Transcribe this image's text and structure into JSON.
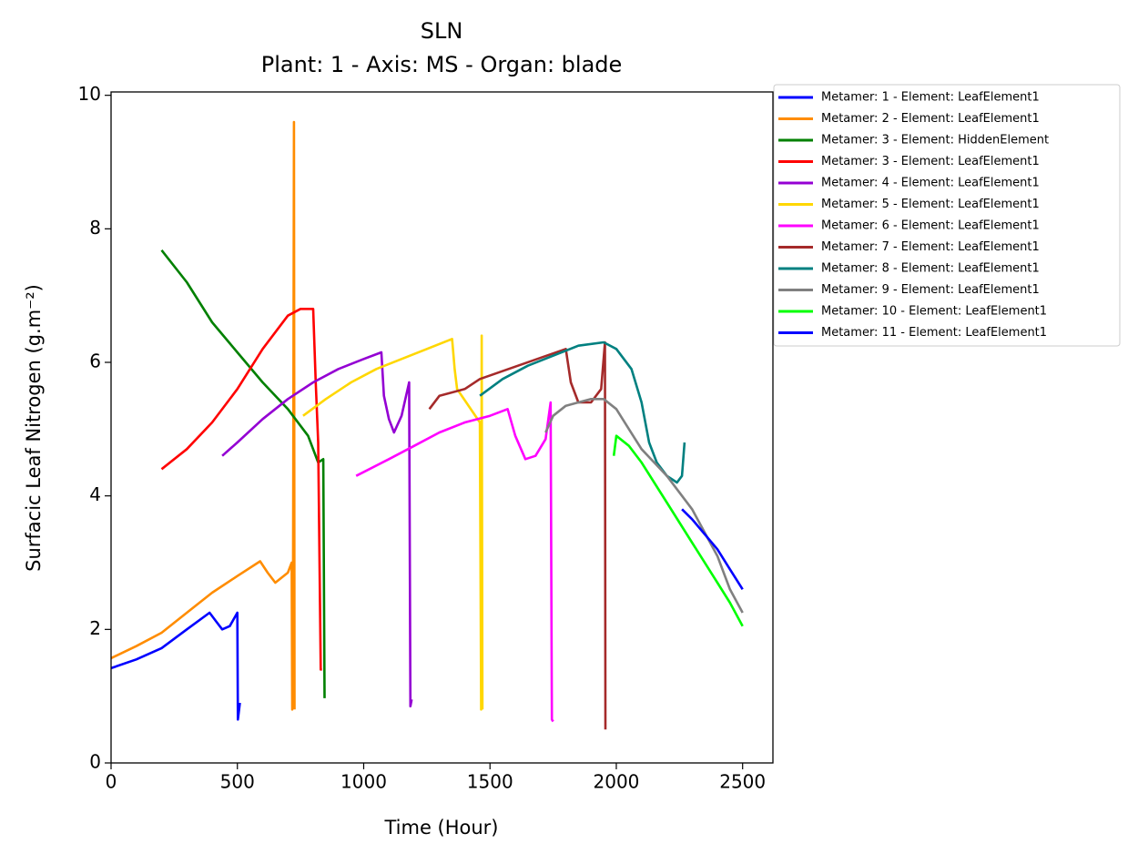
{
  "chart_data": {
    "type": "line",
    "title": "SLN",
    "subtitle": "Plant: 1 - Axis: MS - Organ: blade",
    "xlabel": "Time (Hour)",
    "ylabel": "Surfacic Leaf Nitrogen (g.m⁻²)",
    "xlim": [
      0,
      2620
    ],
    "ylim": [
      0,
      10.05
    ],
    "xticks": [
      0,
      500,
      1000,
      1500,
      2000,
      2500
    ],
    "yticks": [
      0,
      2,
      4,
      6,
      8,
      10
    ],
    "grid": false,
    "legend": "outside upper right",
    "series": [
      {
        "name": "Metamer: 1 - Element: LeafElement1",
        "color": "#0000ff",
        "x": [
          0,
          100,
          200,
          300,
          390,
          420,
          440,
          470,
          500,
          502,
          510
        ],
        "values": [
          1.42,
          1.55,
          1.72,
          2.0,
          2.25,
          2.1,
          2.0,
          2.05,
          2.25,
          0.65,
          0.9
        ]
      },
      {
        "name": "Metamer: 2 - Element: LeafElement1",
        "color": "#ff8c00",
        "x": [
          0,
          100,
          200,
          300,
          400,
          500,
          590,
          620,
          650,
          700,
          715,
          717,
          720,
          724,
          726
        ],
        "values": [
          1.57,
          1.75,
          1.95,
          2.25,
          2.55,
          2.8,
          3.02,
          2.85,
          2.7,
          2.85,
          3.0,
          0.8,
          2.0,
          9.6,
          0.8
        ]
      },
      {
        "name": "Metamer: 3 - Element: HiddenElement",
        "color": "#008000",
        "x": [
          200,
          300,
          400,
          500,
          600,
          700,
          780,
          820,
          840,
          845
        ],
        "values": [
          7.68,
          7.2,
          6.6,
          6.15,
          5.7,
          5.3,
          4.9,
          4.5,
          4.55,
          0.97
        ]
      },
      {
        "name": "Metamer: 3 - Element: LeafElement1",
        "color": "#ff0000",
        "x": [
          200,
          300,
          400,
          500,
          600,
          700,
          750,
          800,
          810,
          820,
          830,
          835
        ],
        "values": [
          4.4,
          4.7,
          5.1,
          5.6,
          6.2,
          6.7,
          6.8,
          6.8,
          5.7,
          4.8,
          1.4,
          1.4
        ]
      },
      {
        "name": "Metamer: 4 - Element: LeafElement1",
        "color": "#9400d3",
        "x": [
          440,
          500,
          600,
          700,
          800,
          900,
          1000,
          1070,
          1080,
          1100,
          1120,
          1150,
          1180,
          1185,
          1190
        ],
        "values": [
          4.6,
          4.8,
          5.15,
          5.45,
          5.7,
          5.9,
          6.05,
          6.15,
          5.5,
          5.15,
          4.95,
          5.2,
          5.7,
          0.85,
          0.95
        ]
      },
      {
        "name": "Metamer: 5 - Element: LeafElement1",
        "color": "#ffd700",
        "x": [
          760,
          850,
          950,
          1050,
          1150,
          1250,
          1350,
          1360,
          1370,
          1460,
          1465,
          1467,
          1470
        ],
        "values": [
          5.2,
          5.45,
          5.7,
          5.9,
          6.05,
          6.2,
          6.35,
          5.9,
          5.6,
          5.1,
          0.8,
          6.4,
          0.8
        ]
      },
      {
        "name": "Metamer: 6 - Element: LeafElement1",
        "color": "#ff00ff",
        "x": [
          970,
          1100,
          1200,
          1300,
          1400,
          1500,
          1570,
          1600,
          1640,
          1680,
          1720,
          1740,
          1745,
          1750
        ],
        "values": [
          4.3,
          4.55,
          4.75,
          4.95,
          5.1,
          5.2,
          5.3,
          4.9,
          4.55,
          4.6,
          4.85,
          5.4,
          0.65,
          0.62
        ]
      },
      {
        "name": "Metamer: 7 - Element: LeafElement1",
        "color": "#a52a2a",
        "x": [
          1260,
          1300,
          1400,
          1460,
          1800,
          1820,
          1850,
          1900,
          1940,
          1955,
          1957
        ],
        "values": [
          5.3,
          5.5,
          5.6,
          5.75,
          6.2,
          5.7,
          5.4,
          5.4,
          5.6,
          6.3,
          0.5
        ]
      },
      {
        "name": "Metamer: 8 - Element: LeafElement1",
        "color": "#008080",
        "x": [
          1460,
          1550,
          1650,
          1750,
          1850,
          1950,
          2000,
          2060,
          2100,
          2130,
          2160,
          2200,
          2240,
          2260,
          2270
        ],
        "values": [
          5.5,
          5.75,
          5.95,
          6.1,
          6.25,
          6.3,
          6.2,
          5.9,
          5.4,
          4.8,
          4.5,
          4.3,
          4.2,
          4.3,
          4.8
        ]
      },
      {
        "name": "Metamer: 9 - Element: LeafElement1",
        "color": "#808080",
        "x": [
          1720,
          1750,
          1800,
          1900,
          1950,
          2000,
          2050,
          2100,
          2200,
          2300,
          2400,
          2450,
          2500
        ],
        "values": [
          4.95,
          5.2,
          5.35,
          5.45,
          5.45,
          5.3,
          5.0,
          4.7,
          4.3,
          3.8,
          3.1,
          2.6,
          2.25
        ]
      },
      {
        "name": "Metamer: 10 - Element: LeafElement1",
        "color": "#00ff00",
        "x": [
          1990,
          2000,
          2050,
          2100,
          2200,
          2300,
          2400,
          2450,
          2500
        ],
        "values": [
          4.6,
          4.9,
          4.75,
          4.5,
          3.9,
          3.3,
          2.7,
          2.4,
          2.05
        ]
      },
      {
        "name": "Metamer: 11 - Element: LeafElement1",
        "color": "#0000ff",
        "x": [
          2260,
          2300,
          2400,
          2450,
          2500
        ],
        "values": [
          3.8,
          3.65,
          3.2,
          2.9,
          2.6
        ]
      }
    ]
  }
}
